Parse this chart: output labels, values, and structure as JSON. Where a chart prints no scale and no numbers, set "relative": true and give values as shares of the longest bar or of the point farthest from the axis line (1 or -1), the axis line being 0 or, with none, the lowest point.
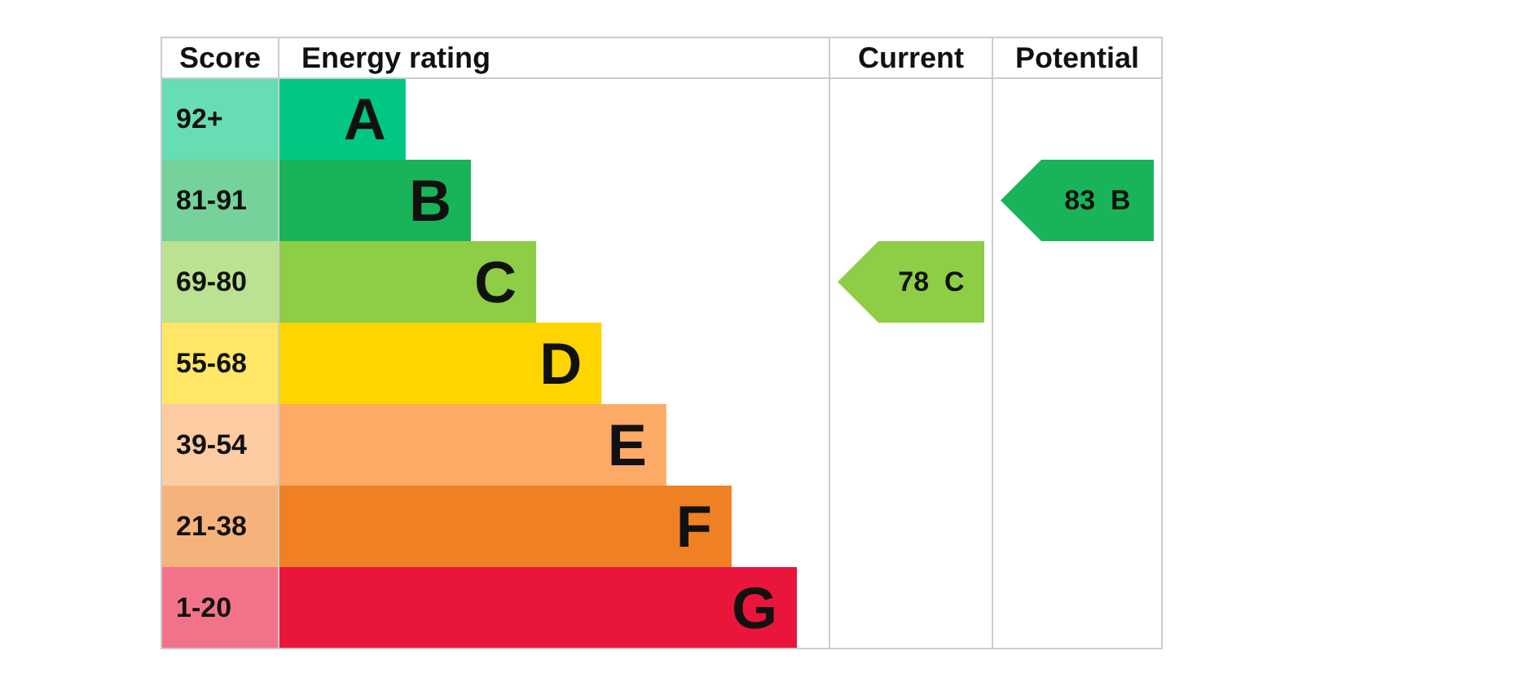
{
  "chart_data": {
    "type": "bar",
    "orientation": "horizontal",
    "relative": true,
    "categories": [
      "A",
      "B",
      "C",
      "D",
      "E",
      "F",
      "G"
    ],
    "values": [
      0.245,
      0.371,
      0.497,
      0.623,
      0.748,
      0.874,
      1
    ],
    "colors": [
      "#00c781",
      "#19b459",
      "#8dce46",
      "#ffd500",
      "#fcaa65",
      "#ef8023",
      "#e9153b"
    ],
    "annotations": [
      "Score",
      "Energy rating",
      "Current",
      "Potential",
      "92+",
      "81-91",
      "69-80",
      "55-68",
      "39-54",
      "21-38",
      "1-20",
      "78  C",
      "83  B"
    ]
  }
}
